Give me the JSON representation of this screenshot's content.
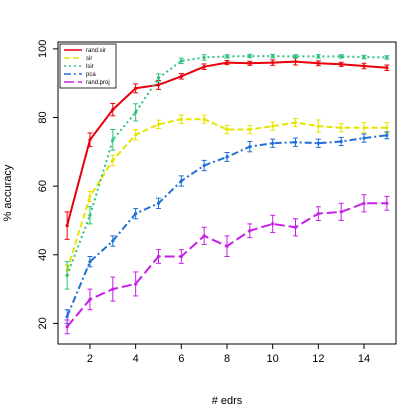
{
  "chart_data": {
    "type": "line",
    "title": "",
    "xlabel": "# edrs",
    "ylabel": "% accuracy",
    "xlim": [
      0.6,
      15.4
    ],
    "ylim": [
      14,
      102
    ],
    "xticks": [
      2,
      4,
      6,
      8,
      10,
      12,
      14
    ],
    "yticks": [
      20,
      40,
      60,
      80,
      100
    ],
    "grid": false,
    "legend_position": "top-left",
    "x": [
      1,
      2,
      3,
      4,
      5,
      6,
      7,
      8,
      9,
      10,
      11,
      12,
      13,
      14,
      15
    ],
    "series": [
      {
        "name": "rand.sir",
        "color": "#e8000b",
        "dash": "",
        "values": [
          48.5,
          73.5,
          82.3,
          88.5,
          89.5,
          92.0,
          94.8,
          96.0,
          95.8,
          96.0,
          96.3,
          95.8,
          95.5,
          95.0,
          94.5
        ],
        "errors": [
          4.0,
          2.0,
          1.8,
          1.3,
          1.3,
          0.8,
          0.8,
          0.6,
          0.6,
          0.8,
          1.0,
          0.7,
          0.6,
          0.8,
          0.8
        ]
      },
      {
        "name": "sir",
        "color": "#e5e500",
        "dash": "6,3",
        "values": [
          35.5,
          57.0,
          67.5,
          75.0,
          78.0,
          79.5,
          79.5,
          76.5,
          76.5,
          77.5,
          78.5,
          77.5,
          77.0,
          77.0,
          77.0
        ],
        "errors": [
          1.5,
          1.5,
          1.5,
          1.5,
          1.2,
          1.2,
          1.2,
          1.2,
          1.2,
          1.2,
          1.2,
          1.8,
          1.2,
          1.5,
          1.5
        ]
      },
      {
        "name": "lsir",
        "color": "#2ec27e",
        "dash": "2,3",
        "values": [
          34.0,
          51.5,
          73.5,
          81.5,
          91.5,
          96.5,
          97.5,
          97.8,
          97.9,
          97.9,
          97.8,
          97.8,
          97.8,
          97.6,
          97.5
        ],
        "errors": [
          4.0,
          2.5,
          3.0,
          2.5,
          1.2,
          0.8,
          0.8,
          0.5,
          0.5,
          0.5,
          0.5,
          0.5,
          0.5,
          0.5,
          0.5
        ]
      },
      {
        "name": "pca",
        "color": "#1f6fd6",
        "dash": "7,3,2,3",
        "values": [
          22.0,
          38.0,
          44.0,
          52.0,
          55.0,
          61.5,
          66.0,
          68.5,
          71.5,
          72.5,
          72.8,
          72.5,
          73.0,
          74.0,
          74.8
        ],
        "errors": [
          2.0,
          1.5,
          1.5,
          1.5,
          1.5,
          1.5,
          1.5,
          1.3,
          1.5,
          1.2,
          1.2,
          1.2,
          1.2,
          1.2,
          1.0
        ]
      },
      {
        "name": "rand.proj",
        "color": "#c81fe8",
        "dash": "10,4",
        "values": [
          19.0,
          27.0,
          30.0,
          31.5,
          39.5,
          39.5,
          45.5,
          42.5,
          47.0,
          49.0,
          48.0,
          52.0,
          52.5,
          55.0,
          55.0
        ],
        "errors": [
          2.0,
          3.0,
          3.5,
          3.5,
          2.0,
          2.0,
          2.5,
          3.0,
          2.0,
          2.5,
          2.5,
          2.0,
          2.5,
          2.5,
          2.0
        ]
      }
    ]
  }
}
